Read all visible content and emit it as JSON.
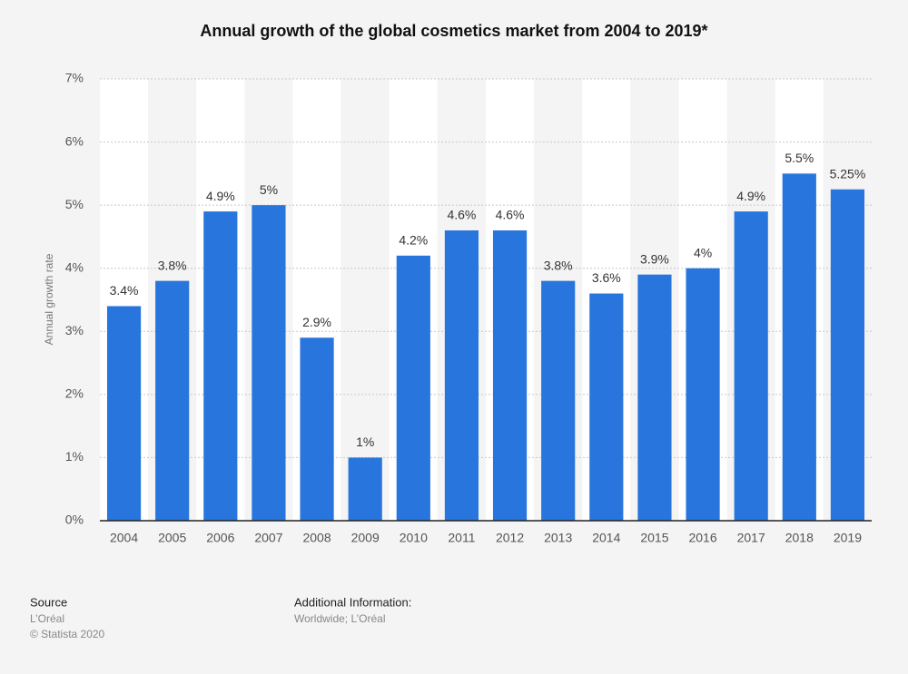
{
  "chart_data": {
    "type": "bar",
    "title": "Annual growth of the global cosmetics market from 2004 to 2019*",
    "y_label": "Annual growth rate",
    "categories": [
      "2004",
      "2005",
      "2006",
      "2007",
      "2008",
      "2009",
      "2010",
      "2011",
      "2012",
      "2013",
      "2014",
      "2015",
      "2016",
      "2017",
      "2018",
      "2019"
    ],
    "values": [
      3.4,
      3.8,
      4.9,
      5,
      2.9,
      1,
      4.2,
      4.6,
      4.6,
      3.8,
      3.6,
      3.9,
      4,
      4.9,
      5.5,
      5.25
    ],
    "value_labels": [
      "3.4%",
      "3.8%",
      "4.9%",
      "5%",
      "2.9%",
      "1%",
      "4.2%",
      "4.6%",
      "4.6%",
      "3.8%",
      "3.6%",
      "3.9%",
      "4%",
      "4.9%",
      "5.5%",
      "5.25%"
    ],
    "color": "#2876dd",
    "ylim": [
      0,
      7
    ],
    "yticks": [
      {
        "value": 0,
        "label": "0%"
      },
      {
        "value": 1,
        "label": "1%"
      },
      {
        "value": 2,
        "label": "2%"
      },
      {
        "value": 3,
        "label": "3%"
      },
      {
        "value": 4,
        "label": "4%"
      },
      {
        "value": 5,
        "label": "5%"
      },
      {
        "value": 6,
        "label": "6%"
      },
      {
        "value": 7,
        "label": "7%"
      }
    ],
    "grid": true
  },
  "footer": {
    "source_title": "Source",
    "source_lines": [
      "L’Oréal",
      "© Statista 2020"
    ],
    "info_title": "Additional Information:",
    "info_lines": [
      "Worldwide; L’Oréal"
    ]
  }
}
